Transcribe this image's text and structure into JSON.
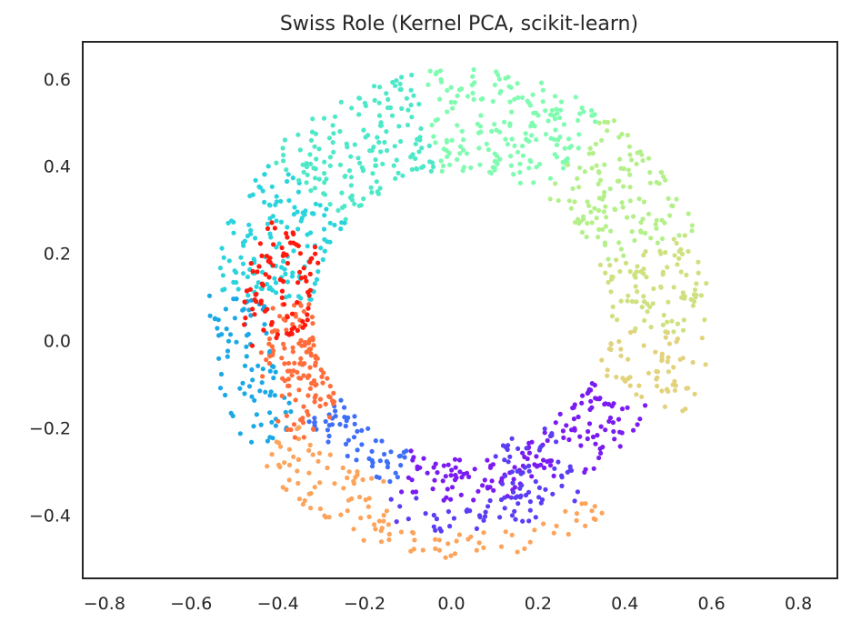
{
  "chart_data": {
    "type": "scatter",
    "title": "Swiss Role (Kernel PCA, scikit-learn)",
    "xlabel": "",
    "ylabel": "",
    "xlim": [
      -0.85,
      0.89
    ],
    "ylim": [
      -0.545,
      0.685
    ],
    "x_ticks": [
      -0.8,
      -0.6,
      -0.4,
      -0.2,
      0.0,
      0.2,
      0.4,
      0.6,
      0.8
    ],
    "x_tick_labels": [
      "−0.8",
      "−0.6",
      "−0.4",
      "−0.2",
      "0.0",
      "0.2",
      "0.4",
      "0.6",
      "0.8"
    ],
    "y_ticks": [
      -0.4,
      -0.2,
      0.0,
      0.2,
      0.4,
      0.6
    ],
    "y_tick_labels": [
      "−0.4",
      "−0.2",
      "0.0",
      "0.2",
      "0.4",
      "0.6"
    ],
    "grid": false,
    "legend": "none",
    "point_count": 1500,
    "colormap": "rainbow",
    "structure": "rolled sheet forming a ring; color goes purple (lower-right inner) -> blue -> orange -> cyan -> green -> yellow -> red (inner left arm)",
    "ring_center": [
      0.02,
      0.06
    ],
    "ring_outer_radius": 0.59,
    "ring_inner_radius": 0.3,
    "colors": {
      "purple": "#7a1bf2",
      "indigo": "#5c3cf4",
      "blue": "#3f6ef8",
      "orange": "#fda35a",
      "orange_red": "#ff6d3b",
      "sky_blue": "#1aa9e6",
      "cyan": "#2ad4dd",
      "teal": "#4ce8c8",
      "mint": "#7ffcb0",
      "lime": "#b4f08a",
      "yellow_green": "#cde17f",
      "sand": "#e2d27c",
      "red": "#ff1a0d"
    }
  }
}
